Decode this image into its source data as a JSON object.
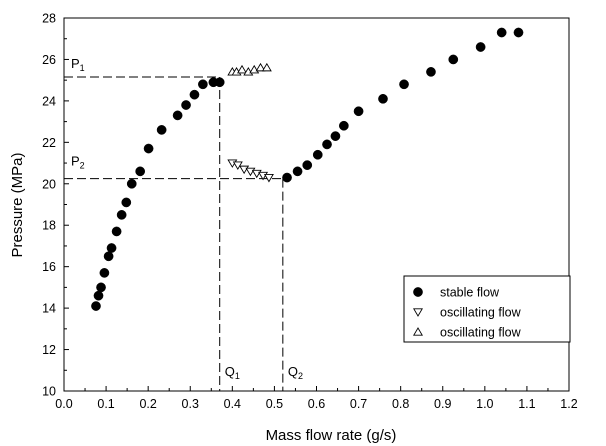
{
  "chart_data": {
    "type": "scatter",
    "xlabel": "Mass flow rate (g/s)",
    "ylabel": "Pressure (MPa)",
    "xlim": [
      0.0,
      1.2
    ],
    "ylim": [
      10,
      28
    ],
    "xticks": [
      "0.0",
      "0.1",
      "0.2",
      "0.3",
      "0.4",
      "0.5",
      "0.6",
      "0.7",
      "0.8",
      "0.9",
      "1.0",
      "1.1",
      "1.2"
    ],
    "yticks": [
      "10",
      "12",
      "14",
      "16",
      "18",
      "20",
      "22",
      "24",
      "26",
      "28"
    ],
    "grid": false,
    "legend_position": "bottom-right",
    "series": [
      {
        "name": "stable flow",
        "marker": "filled-circle",
        "x": [
          0.076,
          0.082,
          0.088,
          0.096,
          0.106,
          0.113,
          0.125,
          0.137,
          0.148,
          0.161,
          0.181,
          0.201,
          0.232,
          0.27,
          0.29,
          0.31,
          0.33,
          0.355,
          0.37,
          0.53,
          0.555,
          0.578,
          0.603,
          0.625,
          0.645,
          0.665,
          0.7,
          0.758,
          0.808,
          0.872,
          0.925,
          0.99,
          1.04,
          1.08
        ],
        "y": [
          14.1,
          14.6,
          15.0,
          15.7,
          16.5,
          16.9,
          17.7,
          18.5,
          19.1,
          20.0,
          20.6,
          21.7,
          22.6,
          23.3,
          23.8,
          24.3,
          24.8,
          24.9,
          24.9,
          20.3,
          20.6,
          20.9,
          21.4,
          21.9,
          22.3,
          22.8,
          23.5,
          24.1,
          24.8,
          25.4,
          26.0,
          26.6,
          27.3,
          27.3
        ],
        "x_note": "",
        "y_note": ""
      },
      {
        "name": "oscillating flow",
        "marker": "open-triangle-down",
        "x": [
          0.4,
          0.413,
          0.428,
          0.443,
          0.458,
          0.473,
          0.487
        ],
        "y": [
          21.0,
          20.9,
          20.7,
          20.6,
          20.5,
          20.4,
          20.3
        ]
      },
      {
        "name": "oscillating flow",
        "marker": "open-triangle-up",
        "x": [
          0.4,
          0.41,
          0.423,
          0.438,
          0.452,
          0.467,
          0.482
        ],
        "y": [
          25.4,
          25.4,
          25.5,
          25.4,
          25.5,
          25.6,
          25.6
        ]
      }
    ],
    "reference_lines": {
      "P1": 25.15,
      "P2": 20.25,
      "Q1": 0.37,
      "Q2": 0.52
    },
    "annotations": {
      "P1": {
        "main": "P",
        "sub": "1"
      },
      "P2": {
        "main": "P",
        "sub": "2"
      },
      "Q1": {
        "main": "Q",
        "sub": "1"
      },
      "Q2": {
        "main": "Q",
        "sub": "2"
      }
    }
  }
}
